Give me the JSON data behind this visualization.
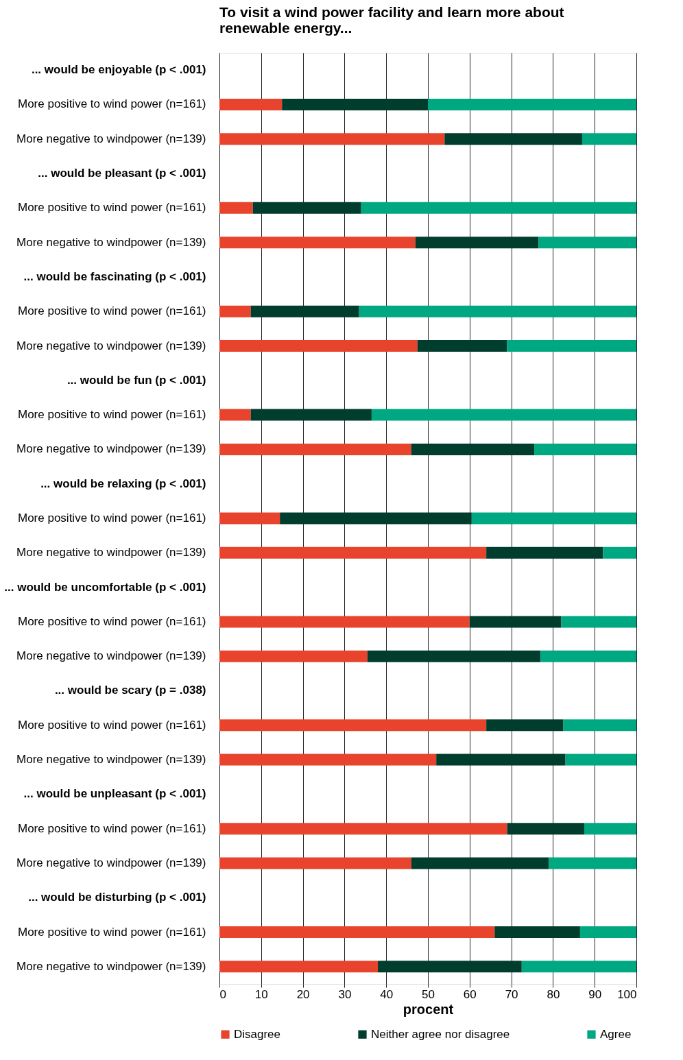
{
  "chart_data": {
    "type": "bar",
    "orientation": "horizontal",
    "stacked": true,
    "title": [
      "To visit a wind power facility and learn more about",
      "renewable energy..."
    ],
    "xlabel": "procent",
    "categories": [
      "... would be enjoyable (p < .001)",
      "More positive to wind power (n=161)",
      "More negative to windpower (n=139)",
      "... would be pleasant (p < .001)",
      "More positive to wind power (n=161)",
      "More negative to windpower (n=139)",
      "... would be fascinating (p < .001)",
      "More positive to wind power (n=161)",
      "More negative to windpower (n=139)",
      "... would be fun (p < .001)",
      "More positive to wind power (n=161)",
      "More negative to windpower (n=139)",
      "... would be relaxing (p < .001)",
      "More positive to wind power (n=161)",
      "More negative to windpower (n=139)",
      "... would be uncomfortable (p < .001)",
      "More positive to wind power (n=161)",
      "More negative to windpower (n=139)",
      "... would be scary (p = .038)",
      "More positive to wind power (n=161)",
      "More negative to windpower (n=139)",
      "... would be unpleasant (p < .001)",
      "More positive to wind power (n=161)",
      "More negative to windpower (n=139)",
      "... would be disturbing (p < .001)",
      "More positive to wind power (n=161)",
      "More negative to windpower (n=139)"
    ],
    "series": [
      {
        "name": "Disagree",
        "color": "#e8432d",
        "values": [
          null,
          15,
          54,
          null,
          8,
          47,
          null,
          7.5,
          47.5,
          null,
          7.5,
          46,
          null,
          14.5,
          64,
          null,
          60,
          35.5,
          null,
          64,
          52,
          null,
          69,
          46,
          null,
          66,
          38
        ]
      },
      {
        "name": "Neither agree nor disagree",
        "color": "#003d2c",
        "values": [
          null,
          35,
          33,
          null,
          26,
          29.5,
          null,
          26,
          21.5,
          null,
          29,
          29.5,
          null,
          46,
          28,
          null,
          22,
          41.5,
          null,
          18.5,
          31,
          null,
          18.5,
          33,
          null,
          20.5,
          34.5
        ]
      },
      {
        "name": "Agree",
        "color": "#00a882",
        "values": [
          null,
          50,
          13,
          null,
          66,
          23.5,
          null,
          66.5,
          31,
          null,
          63.5,
          24.5,
          null,
          39.5,
          8,
          null,
          18,
          23,
          null,
          17.5,
          17,
          null,
          12.5,
          21,
          null,
          13.5,
          27.5
        ]
      }
    ],
    "xlim": [
      0,
      100
    ],
    "xticks": [
      0,
      10,
      20,
      30,
      40,
      50,
      60,
      70,
      80,
      90,
      100
    ],
    "grid": "x",
    "legend": "bottom"
  }
}
